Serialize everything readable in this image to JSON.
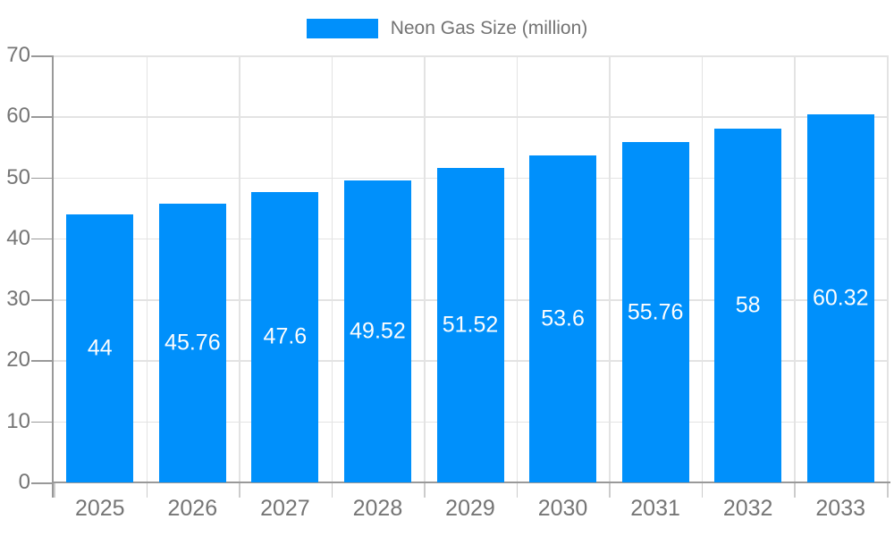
{
  "legend": {
    "position": "top",
    "swatch_color": "#0090fb"
  },
  "chart_data": {
    "type": "bar",
    "title": "",
    "xlabel": "",
    "ylabel": "",
    "categories": [
      "2025",
      "2026",
      "2027",
      "2028",
      "2029",
      "2030",
      "2031",
      "2032",
      "2033"
    ],
    "series": [
      {
        "name": "Neon Gas Size (million)",
        "color": "#0090fb",
        "values": [
          44,
          45.76,
          47.6,
          49.52,
          51.52,
          53.6,
          55.76,
          58,
          60.32
        ]
      }
    ],
    "data_labels": {
      "show": true,
      "position": "center",
      "color": "#fdfdfd",
      "values": [
        "44",
        "45.76",
        "47.6",
        "49.52",
        "51.52",
        "53.6",
        "55.76",
        "58",
        "60.32"
      ]
    },
    "ylim": [
      0,
      70
    ],
    "ytick_step": 10,
    "ytick_labels": [
      "0",
      "10",
      "20",
      "30",
      "40",
      "50",
      "60",
      "70"
    ],
    "grid": true,
    "legend_position": "top"
  },
  "colors": {
    "bar": "#0090fb",
    "axis_line": "#999999",
    "gridline": "#e3e3e3",
    "x_tick": "#cccccc",
    "axis_label_text": "#757575",
    "legend_text": "#737373",
    "bar_label_text": "#fdfdfd",
    "background": "#ffffff"
  }
}
